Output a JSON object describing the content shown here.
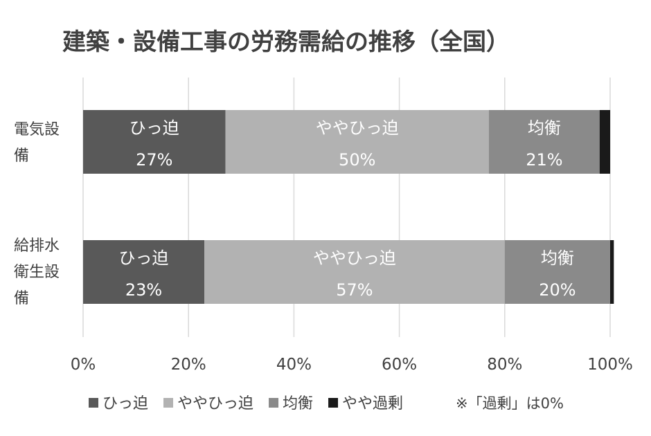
{
  "chart_data": {
    "type": "bar",
    "orientation": "horizontal",
    "stacked": true,
    "percent_stacked": true,
    "title": "建築・設備工事の労務需給の推移（全国）",
    "categories": [
      [
        "電気設",
        "備"
      ],
      [
        "給排水",
        "衛生設",
        "備"
      ]
    ],
    "series": [
      {
        "name": "ひっ迫",
        "values": [
          27,
          23
        ],
        "color": "#595959"
      },
      {
        "name": "ややひっ迫",
        "values": [
          50,
          57
        ],
        "color": "#b2b2b2"
      },
      {
        "name": "均衡",
        "values": [
          21,
          20
        ],
        "color": "#8a8a8a"
      },
      {
        "name": "やや過剰",
        "values": [
          2,
          0.7
        ],
        "color": "#1a1a1a"
      }
    ],
    "data_labels": [
      [
        {
          "name": "ひっ迫",
          "value": "27%"
        },
        {
          "name": "ややひっ迫",
          "value": "50%"
        },
        {
          "name": "均衡",
          "value": "21%"
        },
        null
      ],
      [
        {
          "name": "ひっ迫",
          "value": "23%"
        },
        {
          "name": "ややひっ迫",
          "value": "57%"
        },
        {
          "name": "均衡",
          "value": "20%"
        },
        null
      ]
    ],
    "x_ticks": [
      "0%",
      "20%",
      "40%",
      "60%",
      "80%",
      "100%"
    ],
    "xlim": [
      0,
      100
    ],
    "grid": true,
    "legend_position": "bottom",
    "note": "※「過剰」は0%"
  }
}
